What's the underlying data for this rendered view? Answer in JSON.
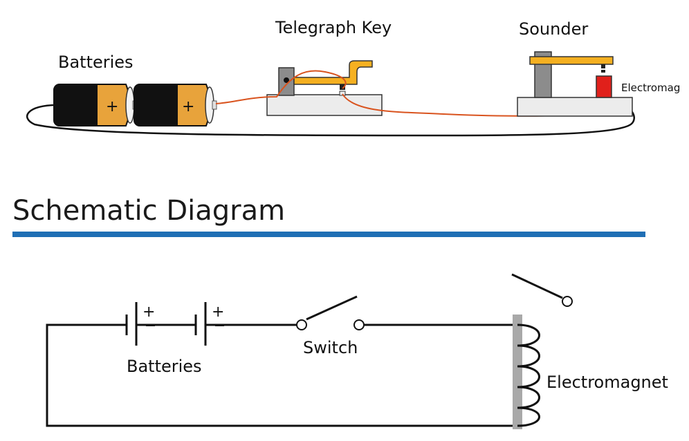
{
  "illustration": {
    "batteries_label": "Batteries",
    "telegraph_key_label": "Telegraph Key",
    "sounder_label": "Sounder",
    "electromagnet_label": "Electromag",
    "battery_plus": "+"
  },
  "schematic": {
    "heading": "Schematic Diagram",
    "batteries_label": "Batteries",
    "switch_label": "Switch",
    "electromagnet_label": "Electromagnet",
    "plus": "+"
  },
  "colors": {
    "accent_rule": "#1f6fb5",
    "wire_red": "#d9531e",
    "key_yellow": "#f5b021",
    "magnet_red": "#e0201b",
    "battery_gold": "#e8a33b",
    "battery_black": "#111111",
    "base_gray": "#ececec",
    "post_gray": "#8c8c8c",
    "core_gray": "#a9a9a9"
  }
}
